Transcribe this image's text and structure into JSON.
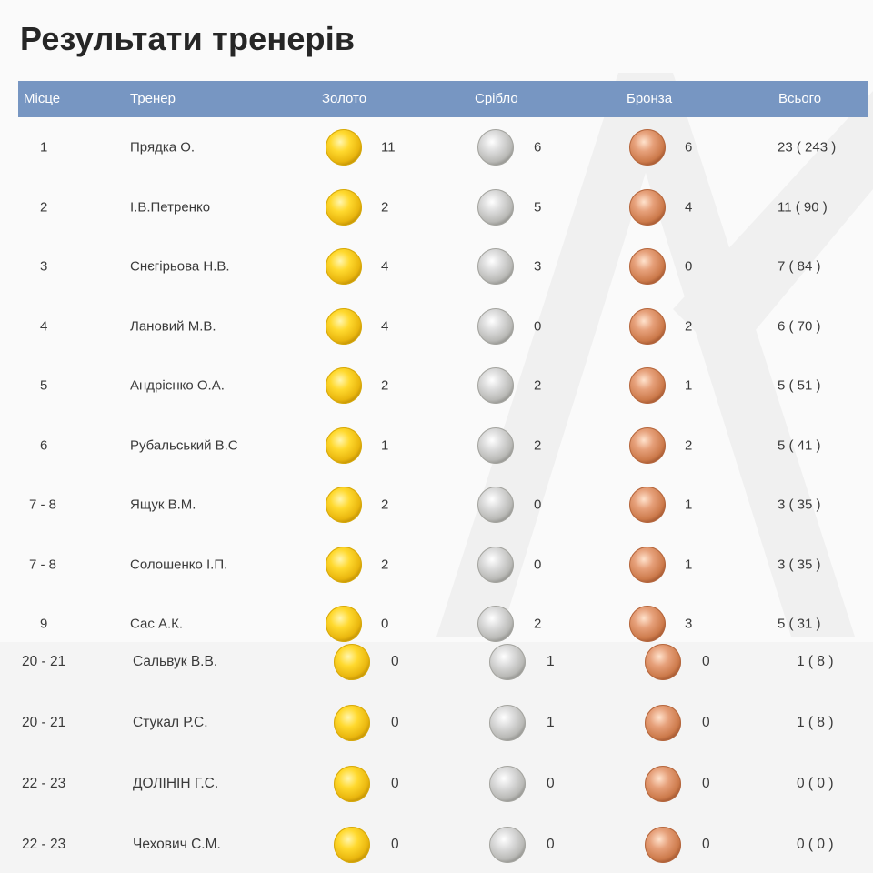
{
  "title": "Результати тренерів",
  "columns": {
    "place": "Місце",
    "coach": "Тренер",
    "gold": "Золото",
    "silver": "Срібло",
    "bronze": "Бронза",
    "total": "Всього"
  },
  "colors": {
    "header_bg": "#7796c2",
    "gold": "#f2c21a",
    "silver": "#b9b9b6",
    "bronze": "#cc7a4b"
  },
  "icons": [
    "gold-medal-icon",
    "silver-medal-icon",
    "bronze-medal-icon"
  ],
  "rows_top": [
    {
      "place": "1",
      "coach": "Прядка О.",
      "gold": "11",
      "silver": "6",
      "bronze": "6",
      "total": "23 ( 243 )"
    },
    {
      "place": "2",
      "coach": "І.В.Петренко",
      "gold": "2",
      "silver": "5",
      "bronze": "4",
      "total": "11 ( 90 )"
    },
    {
      "place": "3",
      "coach": "Снєгірьова Н.В.",
      "gold": "4",
      "silver": "3",
      "bronze": "0",
      "total": "7 ( 84 )"
    },
    {
      "place": "4",
      "coach": "Лановий М.В.",
      "gold": "4",
      "silver": "0",
      "bronze": "2",
      "total": "6 ( 70 )"
    },
    {
      "place": "5",
      "coach": "Андрієнко О.А.",
      "gold": "2",
      "silver": "2",
      "bronze": "1",
      "total": "5 ( 51 )"
    },
    {
      "place": "6",
      "coach": "Рубальський В.С",
      "gold": "1",
      "silver": "2",
      "bronze": "2",
      "total": "5 ( 41 )"
    },
    {
      "place": "7 - 8",
      "coach": "Ящук В.М.",
      "gold": "2",
      "silver": "0",
      "bronze": "1",
      "total": "3 ( 35 )"
    },
    {
      "place": "7 - 8",
      "coach": "Солошенко І.П.",
      "gold": "2",
      "silver": "0",
      "bronze": "1",
      "total": "3 ( 35 )"
    },
    {
      "place": "9",
      "coach": "Сас А.К.",
      "gold": "0",
      "silver": "2",
      "bronze": "3",
      "total": "5 ( 31 )"
    }
  ],
  "rows_bottom": [
    {
      "place": "20 - 21",
      "coach": "Сальвук В.В.",
      "gold": "0",
      "silver": "1",
      "bronze": "0",
      "total": "1 ( 8 )"
    },
    {
      "place": "20 - 21",
      "coach": "Стукал Р.С.",
      "gold": "0",
      "silver": "1",
      "bronze": "0",
      "total": "1 ( 8 )"
    },
    {
      "place": "22 - 23",
      "coach": "ДОЛІНІН Г.С.",
      "gold": "0",
      "silver": "0",
      "bronze": "0",
      "total": "0 ( 0 )"
    },
    {
      "place": "22 - 23",
      "coach": "Чехович С.М.",
      "gold": "0",
      "silver": "0",
      "bronze": "0",
      "total": "0 ( 0 )"
    }
  ]
}
